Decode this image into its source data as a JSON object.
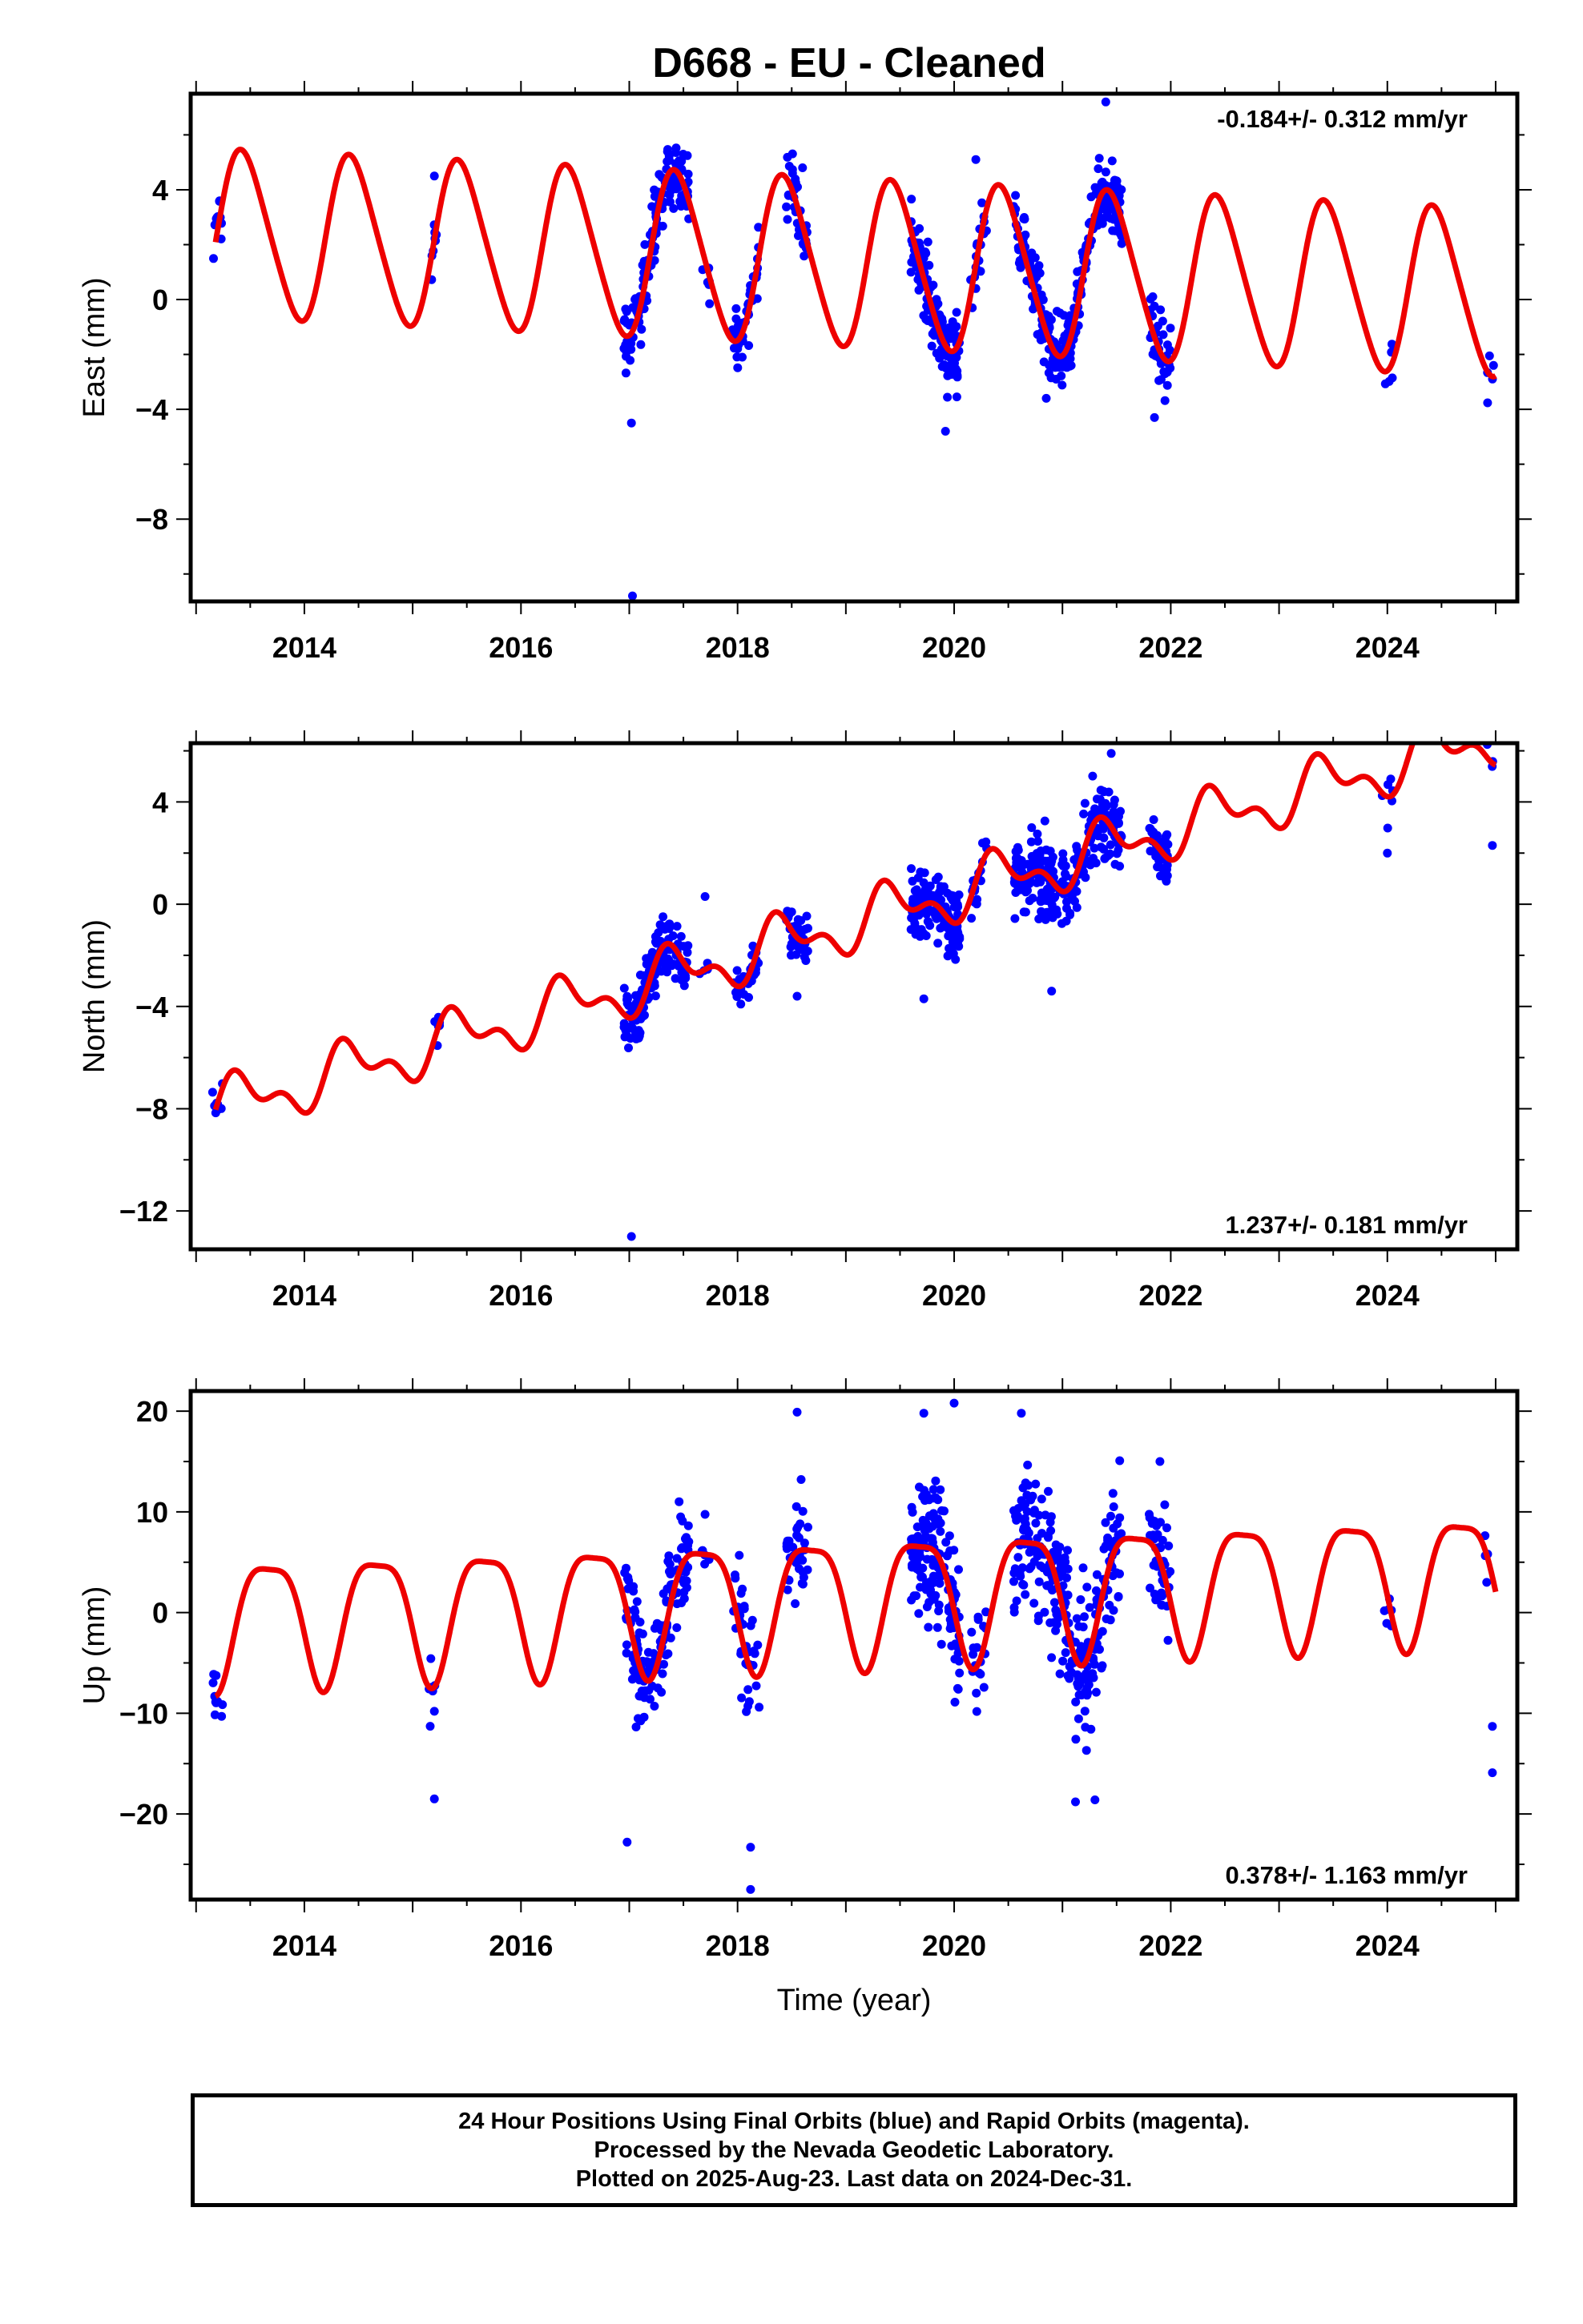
{
  "title": "D668  - EU - Cleaned",
  "colors": {
    "points": "#0000ff",
    "fit": "#ee0000",
    "frame": "#000000"
  },
  "chart_data": [
    {
      "type": "scatter",
      "name": "east",
      "ylabel": "East (mm)",
      "xlabel": "",
      "rate_label": "-0.184+/- 0.312 mm/yr",
      "rate_position": "top-right",
      "xlim": [
        2012.95,
        2025.2
      ],
      "ylim": [
        -11,
        7.5
      ],
      "xticks": [
        "2014",
        "2016",
        "2018",
        "2020",
        "2022",
        "2024"
      ],
      "yticks": [
        "4",
        "0",
        "−4",
        "−8"
      ],
      "model": {
        "offset": 2.4,
        "rate": -0.184,
        "amp_annual": 3.0,
        "phase_annual": 0.05,
        "amp_semi": 0.35,
        "phase_semi": 0.0
      },
      "segments": [
        {
          "t": [
            2013.15,
            2013.25
          ],
          "n": 10,
          "spread": 0.9
        },
        {
          "t": [
            2015.15,
            2015.25
          ],
          "n": 8,
          "spread": 0.8
        },
        {
          "t": [
            2016.95,
            2017.55
          ],
          "n": 140,
          "spread": 0.9
        },
        {
          "t": [
            2017.65,
            2017.75
          ],
          "n": 6,
          "spread": 0.6
        },
        {
          "t": [
            2017.95,
            2018.2
          ],
          "n": 35,
          "spread": 0.8
        },
        {
          "t": [
            2018.45,
            2018.65
          ],
          "n": 35,
          "spread": 0.9
        },
        {
          "t": [
            2019.6,
            2020.05
          ],
          "n": 150,
          "spread": 1.0
        },
        {
          "t": [
            2020.15,
            2020.3
          ],
          "n": 18,
          "spread": 0.8
        },
        {
          "t": [
            2020.55,
            2021.55
          ],
          "n": 260,
          "spread": 0.9
        },
        {
          "t": [
            2021.8,
            2022.0
          ],
          "n": 40,
          "spread": 0.9
        },
        {
          "t": [
            2023.95,
            2024.05
          ],
          "n": 6,
          "spread": 0.8
        },
        {
          "t": [
            2024.9,
            2024.98
          ],
          "n": 4,
          "spread": 0.8
        }
      ],
      "outliers": [
        [
          2017.03,
          -10.8
        ],
        [
          2017.02,
          -4.5
        ],
        [
          2019.92,
          -4.8
        ],
        [
          2021.4,
          7.2
        ],
        [
          2020.2,
          5.1
        ],
        [
          2018.6,
          4.8
        ],
        [
          2015.2,
          4.5
        ],
        [
          2020.85,
          -3.6
        ],
        [
          2021.85,
          -4.3
        ],
        [
          2024.98,
          -2.4
        ]
      ]
    },
    {
      "type": "scatter",
      "name": "north",
      "ylabel": "North (mm)",
      "xlabel": "",
      "rate_label": "1.237+/- 0.181 mm/yr",
      "rate_position": "bottom-right",
      "xlim": [
        2012.95,
        2025.2
      ],
      "ylim": [
        -13.5,
        6.3
      ],
      "xticks": [
        "2014",
        "2016",
        "2018",
        "2020",
        "2022",
        "2024"
      ],
      "yticks": [
        "4",
        "0",
        "−4",
        "−8",
        "−12"
      ],
      "model": {
        "offset": -8.0,
        "rate": 1.237,
        "amp_annual": 0.9,
        "phase_annual": 0.2,
        "amp_semi": 0.55,
        "phase_semi": 0.1
      },
      "segments": [
        {
          "t": [
            2013.15,
            2013.25
          ],
          "n": 8,
          "spread": 0.6
        },
        {
          "t": [
            2015.15,
            2015.25
          ],
          "n": 6,
          "spread": 0.6
        },
        {
          "t": [
            2016.95,
            2017.55
          ],
          "n": 140,
          "spread": 0.8
        },
        {
          "t": [
            2017.65,
            2017.75
          ],
          "n": 4,
          "spread": 0.5
        },
        {
          "t": [
            2017.95,
            2018.2
          ],
          "n": 35,
          "spread": 0.6
        },
        {
          "t": [
            2018.45,
            2018.65
          ],
          "n": 35,
          "spread": 0.9
        },
        {
          "t": [
            2019.6,
            2020.05
          ],
          "n": 150,
          "spread": 1.0
        },
        {
          "t": [
            2020.15,
            2020.3
          ],
          "n": 18,
          "spread": 0.8
        },
        {
          "t": [
            2020.55,
            2021.55
          ],
          "n": 260,
          "spread": 1.0
        },
        {
          "t": [
            2021.8,
            2022.0
          ],
          "n": 40,
          "spread": 0.8
        },
        {
          "t": [
            2023.95,
            2024.05
          ],
          "n": 6,
          "spread": 0.9
        },
        {
          "t": [
            2024.9,
            2024.98
          ],
          "n": 4,
          "spread": 0.6
        }
      ],
      "outliers": [
        [
          2017.02,
          -13.0
        ],
        [
          2017.7,
          0.3
        ],
        [
          2024.0,
          2.0
        ],
        [
          2021.45,
          5.9
        ],
        [
          2019.72,
          -3.7
        ],
        [
          2024.97,
          2.3
        ],
        [
          2020.9,
          -3.4
        ],
        [
          2018.55,
          -3.6
        ]
      ]
    },
    {
      "type": "scatter",
      "name": "up",
      "ylabel": "Up (mm)",
      "xlabel": "Time (year)",
      "rate_label": "0.378+/- 1.163 mm/yr",
      "rate_position": "bottom-right",
      "xlim": [
        2012.95,
        2025.2
      ],
      "ylim": [
        -28.5,
        22.0
      ],
      "xticks": [
        "2014",
        "2016",
        "2018",
        "2020",
        "2022",
        "2024"
      ],
      "yticks": [
        "20",
        "10",
        "0",
        "−10",
        "−20"
      ],
      "model": {
        "offset": -0.5,
        "rate": 0.378,
        "amp_annual": 6.2,
        "phase_annual": -1.4,
        "amp_semi": 1.6,
        "phase_semi": -1.3
      },
      "segments": [
        {
          "t": [
            2013.15,
            2013.25
          ],
          "n": 10,
          "spread": 2.5
        },
        {
          "t": [
            2015.15,
            2015.25
          ],
          "n": 6,
          "spread": 3.0
        },
        {
          "t": [
            2016.95,
            2017.55
          ],
          "n": 140,
          "spread": 4.0
        },
        {
          "t": [
            2017.65,
            2017.75
          ],
          "n": 6,
          "spread": 2.0
        },
        {
          "t": [
            2017.95,
            2018.2
          ],
          "n": 35,
          "spread": 4.5
        },
        {
          "t": [
            2018.45,
            2018.65
          ],
          "n": 35,
          "spread": 3.5
        },
        {
          "t": [
            2019.6,
            2020.05
          ],
          "n": 150,
          "spread": 5.0
        },
        {
          "t": [
            2020.15,
            2020.3
          ],
          "n": 18,
          "spread": 4.0
        },
        {
          "t": [
            2020.55,
            2021.55
          ],
          "n": 260,
          "spread": 5.0
        },
        {
          "t": [
            2021.8,
            2022.0
          ],
          "n": 40,
          "spread": 4.0
        },
        {
          "t": [
            2023.95,
            2024.05
          ],
          "n": 6,
          "spread": 2.5
        },
        {
          "t": [
            2024.9,
            2024.98
          ],
          "n": 4,
          "spread": 2.5
        }
      ],
      "outliers": [
        [
          2018.12,
          -27.5
        ],
        [
          2018.12,
          -23.3
        ],
        [
          2016.98,
          -22.8
        ],
        [
          2018.55,
          19.9
        ],
        [
          2020.0,
          20.8
        ],
        [
          2019.72,
          19.8
        ],
        [
          2020.62,
          19.8
        ],
        [
          2021.9,
          15.0
        ],
        [
          2015.2,
          -18.5
        ],
        [
          2015.2,
          -9.8
        ],
        [
          2024.97,
          -15.9
        ],
        [
          2024.97,
          -11.3
        ],
        [
          2021.3,
          -18.6
        ],
        [
          2021.12,
          -18.8
        ]
      ]
    }
  ],
  "footer": {
    "line1": "24 Hour Positions Using Final Orbits (blue) and Rapid Orbits (magenta).",
    "line2": "Processed by the Nevada Geodetic Laboratory.",
    "line3": "Plotted on 2025-Aug-23. Last data on 2024-Dec-31."
  }
}
